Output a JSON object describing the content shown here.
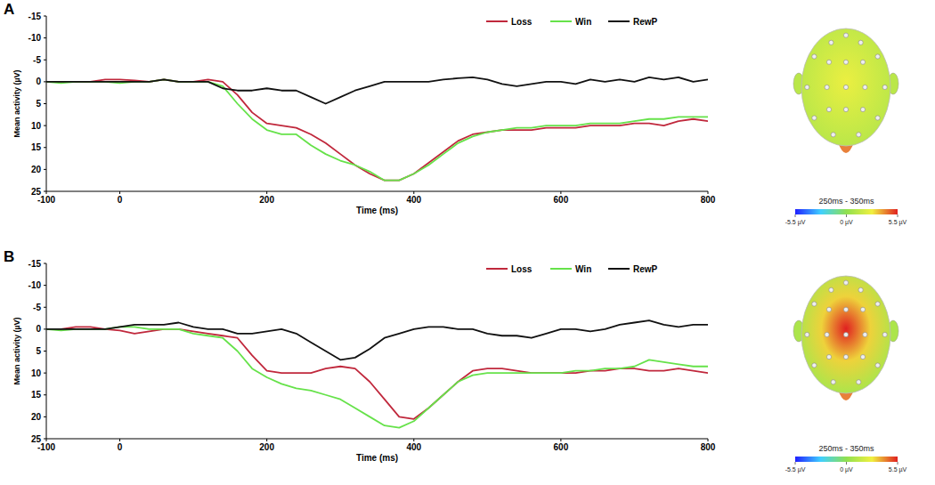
{
  "chart_data": [
    {
      "type": "line",
      "label": "A",
      "x_label": "Time (ms)",
      "y_label": "Mean activity (µV)",
      "x": [
        -100,
        -80,
        -60,
        -40,
        -20,
        0,
        20,
        40,
        60,
        80,
        100,
        120,
        140,
        160,
        180,
        200,
        220,
        240,
        260,
        280,
        300,
        320,
        340,
        360,
        380,
        400,
        420,
        440,
        460,
        480,
        500,
        520,
        540,
        560,
        580,
        600,
        620,
        640,
        660,
        680,
        700,
        720,
        740,
        760,
        780,
        800
      ],
      "series": [
        {
          "name": "Loss",
          "color": "#c0283c",
          "values": [
            0,
            0,
            0,
            0,
            -0.5,
            -0.5,
            -0.3,
            0,
            -0.5,
            0,
            0,
            -0.5,
            0,
            3,
            7,
            9.5,
            10,
            10.5,
            12,
            14,
            16.5,
            19,
            21,
            22.5,
            22.5,
            21,
            18.5,
            16,
            13.5,
            12,
            11.5,
            11,
            11,
            11,
            10.5,
            10.5,
            10.5,
            10,
            10,
            10,
            9.5,
            9.5,
            10,
            9,
            8.5,
            9
          ]
        },
        {
          "name": "Win",
          "color": "#66e24a",
          "values": [
            0,
            0.3,
            0,
            0,
            0,
            0.3,
            0,
            0,
            -0.5,
            0,
            0,
            0,
            1,
            5,
            8.5,
            11,
            12,
            12,
            14.5,
            16.5,
            18,
            19,
            20.5,
            22.5,
            22.5,
            21,
            19,
            16.5,
            14,
            12.5,
            11.5,
            11,
            10.5,
            10.5,
            10,
            10,
            10,
            9.5,
            9.5,
            9.5,
            9,
            8.5,
            8.5,
            8,
            8,
            8
          ]
        },
        {
          "name": "RewP",
          "color": "#111111",
          "values": [
            0,
            0,
            0,
            0,
            0,
            0,
            0,
            0,
            -0.5,
            0,
            0,
            0,
            1.5,
            2,
            2,
            1.5,
            2,
            2,
            3.5,
            5,
            3.5,
            2,
            1,
            0,
            0,
            0,
            0,
            -0.5,
            -0.8,
            -1,
            -0.5,
            0.5,
            1,
            0.5,
            0,
            0,
            0.5,
            -0.5,
            0,
            -0.5,
            0,
            -1,
            -0.5,
            -1,
            0,
            -0.5
          ]
        }
      ],
      "xlim": [
        -100,
        800
      ],
      "xticks": [
        -100,
        0,
        200,
        400,
        600,
        800
      ],
      "ylim": [
        25,
        -15
      ],
      "yticks": [
        -15,
        -10,
        -5,
        0,
        5,
        10,
        15,
        20,
        25
      ],
      "grid": false,
      "legend": "top-right",
      "topomap": {
        "title": "250ms - 350ms",
        "center": 2.6,
        "edge": 1.2,
        "colorbar": {
          "range": [
            -5.5,
            5.5
          ],
          "ticks": [
            {
              "value": -5.5,
              "label": "-5.5 µV"
            },
            {
              "value": 0,
              "label": "0 µV"
            },
            {
              "value": 5.5,
              "label": "5.5 µV"
            }
          ]
        }
      }
    },
    {
      "type": "line",
      "label": "B",
      "x_label": "Time (ms)",
      "y_label": "Mean activity (µV)",
      "x": [
        -100,
        -80,
        -60,
        -40,
        -20,
        0,
        20,
        40,
        60,
        80,
        100,
        120,
        140,
        160,
        180,
        200,
        220,
        240,
        260,
        280,
        300,
        320,
        340,
        360,
        380,
        400,
        420,
        440,
        460,
        480,
        500,
        520,
        540,
        560,
        580,
        600,
        620,
        640,
        660,
        680,
        700,
        720,
        740,
        760,
        780,
        800
      ],
      "series": [
        {
          "name": "Loss",
          "color": "#c0283c",
          "values": [
            0,
            0,
            -0.5,
            -0.5,
            0,
            0.3,
            1,
            0.5,
            0,
            0,
            0.5,
            1,
            1.5,
            2,
            6,
            9.5,
            10,
            10,
            10,
            9,
            8.5,
            9,
            12,
            16,
            20,
            20.5,
            18,
            15,
            12,
            9.5,
            9,
            9,
            9.5,
            10,
            10,
            10,
            10,
            9.5,
            9.5,
            9,
            9,
            9.5,
            9.5,
            9,
            9.5,
            10
          ]
        },
        {
          "name": "Win",
          "color": "#66e24a",
          "values": [
            0,
            0.3,
            0,
            0,
            0,
            -0.5,
            -0.5,
            0,
            0,
            0,
            1,
            1.5,
            2,
            5,
            9,
            11,
            12.5,
            13.5,
            14,
            15,
            16,
            18,
            20,
            22,
            22.5,
            21,
            18,
            15,
            12,
            10.5,
            10,
            10,
            10,
            10,
            10,
            10,
            9.5,
            9.5,
            9,
            9,
            8.5,
            7,
            7.5,
            8,
            8.5,
            8.5
          ]
        },
        {
          "name": "RewP",
          "color": "#111111",
          "values": [
            0,
            0,
            0,
            0,
            0,
            -0.5,
            -1,
            -1,
            -1,
            -1.5,
            -0.5,
            0,
            0,
            1,
            1,
            0.5,
            0,
            1,
            3,
            5,
            7,
            6.5,
            4.5,
            2,
            1,
            0,
            -0.5,
            -0.5,
            0,
            0,
            1,
            1.5,
            1.5,
            2,
            1,
            0,
            0,
            0.5,
            0,
            -1,
            -1.5,
            -2,
            -1,
            -0.5,
            -1,
            -1
          ]
        }
      ],
      "xlim": [
        -100,
        800
      ],
      "xticks": [
        -100,
        0,
        200,
        400,
        600,
        800
      ],
      "ylim": [
        25,
        -15
      ],
      "yticks": [
        -15,
        -10,
        -5,
        0,
        5,
        10,
        15,
        20,
        25
      ],
      "grid": false,
      "legend": "top-right",
      "topomap": {
        "title": "250ms - 350ms",
        "center": 5.5,
        "edge": 0.8,
        "colorbar": {
          "range": [
            -5.5,
            5.5
          ],
          "ticks": [
            {
              "value": -5.5,
              "label": "-5.5 µV"
            },
            {
              "value": 0,
              "label": "0 µV"
            },
            {
              "value": 5.5,
              "label": "5.5 µV"
            }
          ]
        }
      }
    }
  ]
}
